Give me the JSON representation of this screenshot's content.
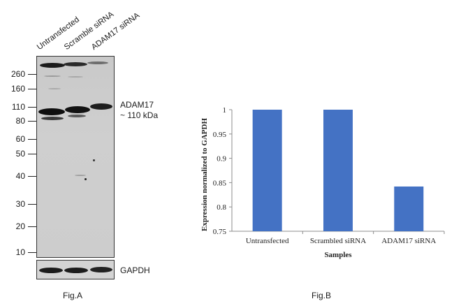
{
  "figA": {
    "lane_labels": [
      "Untransfected",
      "Scramble siRNA",
      "ADAM17 siRNA"
    ],
    "markers": [
      "260",
      "160",
      "110",
      "80",
      "60",
      "50",
      "40",
      "30",
      "20",
      "10"
    ],
    "target_label": "ADAM17",
    "target_size": "~ 110 kDa",
    "loading_control": "GAPDH",
    "caption": "Fig.A"
  },
  "figB": {
    "caption": "Fig.B"
  },
  "chart_data": {
    "type": "bar",
    "categories": [
      "Untransfected",
      "Scrambled siRNA",
      "ADAM17 siRNA"
    ],
    "values": [
      1.0,
      1.0,
      0.842
    ],
    "title": "",
    "xlabel": "Samples",
    "ylabel": "Expression normalized to GAPDH",
    "ylim": [
      0.75,
      1.0
    ],
    "yticks": [
      "0.75",
      "0.8",
      "0.85",
      "0.9",
      "0.95",
      "1"
    ],
    "bar_color": "#4472c4",
    "grid": false
  }
}
